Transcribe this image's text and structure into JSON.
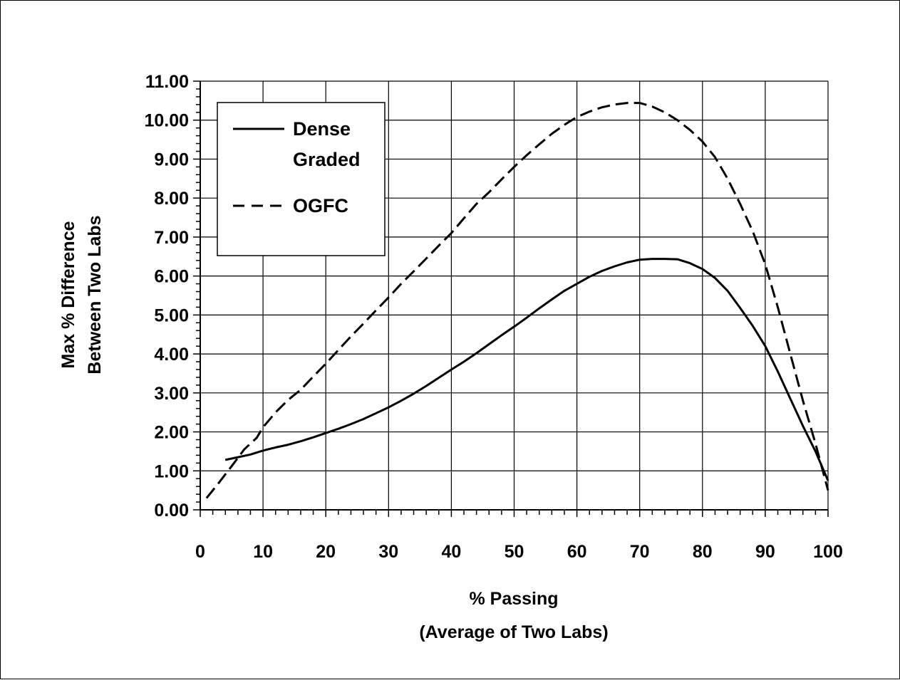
{
  "chart_data": {
    "type": "line",
    "title": "",
    "xlabel_lines": [
      "% Passing",
      "(Average of Two Labs)"
    ],
    "ylabel_lines": [
      "Max % Difference",
      "Between Two Labs"
    ],
    "xlim": [
      0,
      100
    ],
    "ylim": [
      0,
      11
    ],
    "x_ticks": [
      "0",
      "10",
      "20",
      "30",
      "40",
      "50",
      "60",
      "70",
      "80",
      "90",
      "100"
    ],
    "y_ticks": [
      "0.00",
      "1.00",
      "2.00",
      "3.00",
      "4.00",
      "5.00",
      "6.00",
      "7.00",
      "8.00",
      "9.00",
      "10.00",
      "11.00"
    ],
    "grid": true,
    "legend_placement": "top-left",
    "series": [
      {
        "name": "Dense Graded",
        "style": "solid",
        "color": "#000000",
        "points": [
          [
            4,
            1.28
          ],
          [
            6,
            1.35
          ],
          [
            8,
            1.42
          ],
          [
            10,
            1.52
          ],
          [
            12,
            1.6
          ],
          [
            14,
            1.67
          ],
          [
            16,
            1.76
          ],
          [
            18,
            1.86
          ],
          [
            20,
            1.97
          ],
          [
            22,
            2.08
          ],
          [
            24,
            2.2
          ],
          [
            26,
            2.33
          ],
          [
            28,
            2.48
          ],
          [
            30,
            2.63
          ],
          [
            32,
            2.8
          ],
          [
            34,
            2.98
          ],
          [
            36,
            3.18
          ],
          [
            38,
            3.39
          ],
          [
            40,
            3.6
          ],
          [
            42,
            3.8
          ],
          [
            44,
            4.02
          ],
          [
            46,
            4.25
          ],
          [
            48,
            4.48
          ],
          [
            50,
            4.7
          ],
          [
            52,
            4.93
          ],
          [
            54,
            5.17
          ],
          [
            56,
            5.4
          ],
          [
            58,
            5.62
          ],
          [
            60,
            5.8
          ],
          [
            62,
            5.98
          ],
          [
            64,
            6.13
          ],
          [
            66,
            6.25
          ],
          [
            68,
            6.35
          ],
          [
            70,
            6.42
          ],
          [
            72,
            6.44
          ],
          [
            74,
            6.44
          ],
          [
            76,
            6.43
          ],
          [
            78,
            6.33
          ],
          [
            80,
            6.18
          ],
          [
            82,
            5.95
          ],
          [
            84,
            5.62
          ],
          [
            86,
            5.18
          ],
          [
            88,
            4.72
          ],
          [
            90,
            4.2
          ],
          [
            92,
            3.55
          ],
          [
            94,
            2.85
          ],
          [
            96,
            2.15
          ],
          [
            98,
            1.5
          ],
          [
            100,
            0.75
          ]
        ]
      },
      {
        "name": "OGFC",
        "style": "dashed",
        "color": "#000000",
        "points": [
          [
            1,
            0.3
          ],
          [
            3,
            0.7
          ],
          [
            5,
            1.12
          ],
          [
            7,
            1.55
          ],
          [
            9,
            1.85
          ],
          [
            10,
            2.12
          ],
          [
            12,
            2.5
          ],
          [
            14,
            2.82
          ],
          [
            16,
            3.08
          ],
          [
            18,
            3.42
          ],
          [
            20,
            3.75
          ],
          [
            22,
            4.1
          ],
          [
            24,
            4.45
          ],
          [
            26,
            4.78
          ],
          [
            28,
            5.12
          ],
          [
            30,
            5.45
          ],
          [
            32,
            5.8
          ],
          [
            34,
            6.12
          ],
          [
            36,
            6.45
          ],
          [
            38,
            6.78
          ],
          [
            40,
            7.1
          ],
          [
            42,
            7.48
          ],
          [
            44,
            7.85
          ],
          [
            46,
            8.15
          ],
          [
            48,
            8.48
          ],
          [
            50,
            8.8
          ],
          [
            52,
            9.1
          ],
          [
            54,
            9.38
          ],
          [
            56,
            9.65
          ],
          [
            58,
            9.88
          ],
          [
            60,
            10.08
          ],
          [
            62,
            10.22
          ],
          [
            64,
            10.33
          ],
          [
            66,
            10.4
          ],
          [
            68,
            10.44
          ],
          [
            70,
            10.44
          ],
          [
            72,
            10.35
          ],
          [
            74,
            10.2
          ],
          [
            76,
            10.0
          ],
          [
            78,
            9.75
          ],
          [
            80,
            9.45
          ],
          [
            82,
            9.05
          ],
          [
            84,
            8.5
          ],
          [
            86,
            7.85
          ],
          [
            88,
            7.15
          ],
          [
            90,
            6.3
          ],
          [
            92,
            5.2
          ],
          [
            94,
            4.0
          ],
          [
            96,
            2.8
          ],
          [
            98,
            1.7
          ],
          [
            99,
            1.1
          ],
          [
            100,
            0.5
          ]
        ]
      }
    ],
    "legend_labels": {
      "dense_line1": "Dense",
      "dense_line2": "Graded",
      "ogfc": "OGFC"
    }
  }
}
